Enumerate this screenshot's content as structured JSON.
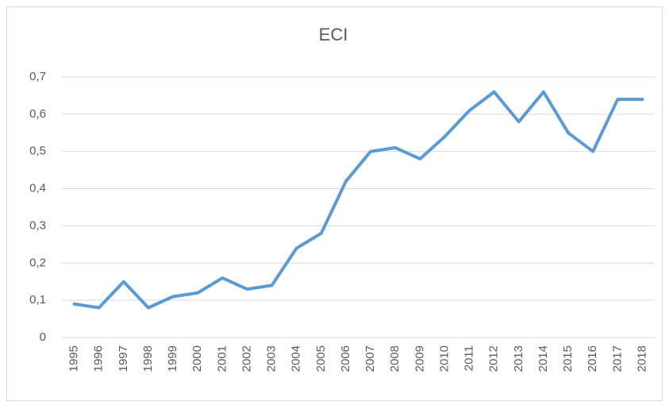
{
  "chart_data": {
    "type": "line",
    "title": "ECI",
    "categories": [
      "1995",
      "1996",
      "1997",
      "1998",
      "1999",
      "2000",
      "2001",
      "2002",
      "2003",
      "2004",
      "2005",
      "2006",
      "2007",
      "2008",
      "2009",
      "2010",
      "2011",
      "2012",
      "2013",
      "2014",
      "2015",
      "2016",
      "2017",
      "2018"
    ],
    "values": [
      0.09,
      0.08,
      0.15,
      0.08,
      0.11,
      0.12,
      0.16,
      0.13,
      0.14,
      0.24,
      0.28,
      0.42,
      0.5,
      0.51,
      0.48,
      0.54,
      0.61,
      0.66,
      0.58,
      0.66,
      0.55,
      0.5,
      0.64,
      0.64
    ],
    "color": "#5b9bd5",
    "ylim": [
      0,
      0.7
    ],
    "yticks": [
      0,
      {
        "value": 0.1,
        "label": "0,1"
      },
      {
        "value": 0.2,
        "label": "0,2"
      },
      {
        "value": 0.3,
        "label": "0,3"
      },
      {
        "value": 0.4,
        "label": "0,4"
      },
      {
        "value": 0.5,
        "label": "0,5"
      },
      {
        "value": 0.6,
        "label": "0,6"
      },
      {
        "value": 0.7,
        "label": "0,7"
      }
    ],
    "grid": true
  }
}
